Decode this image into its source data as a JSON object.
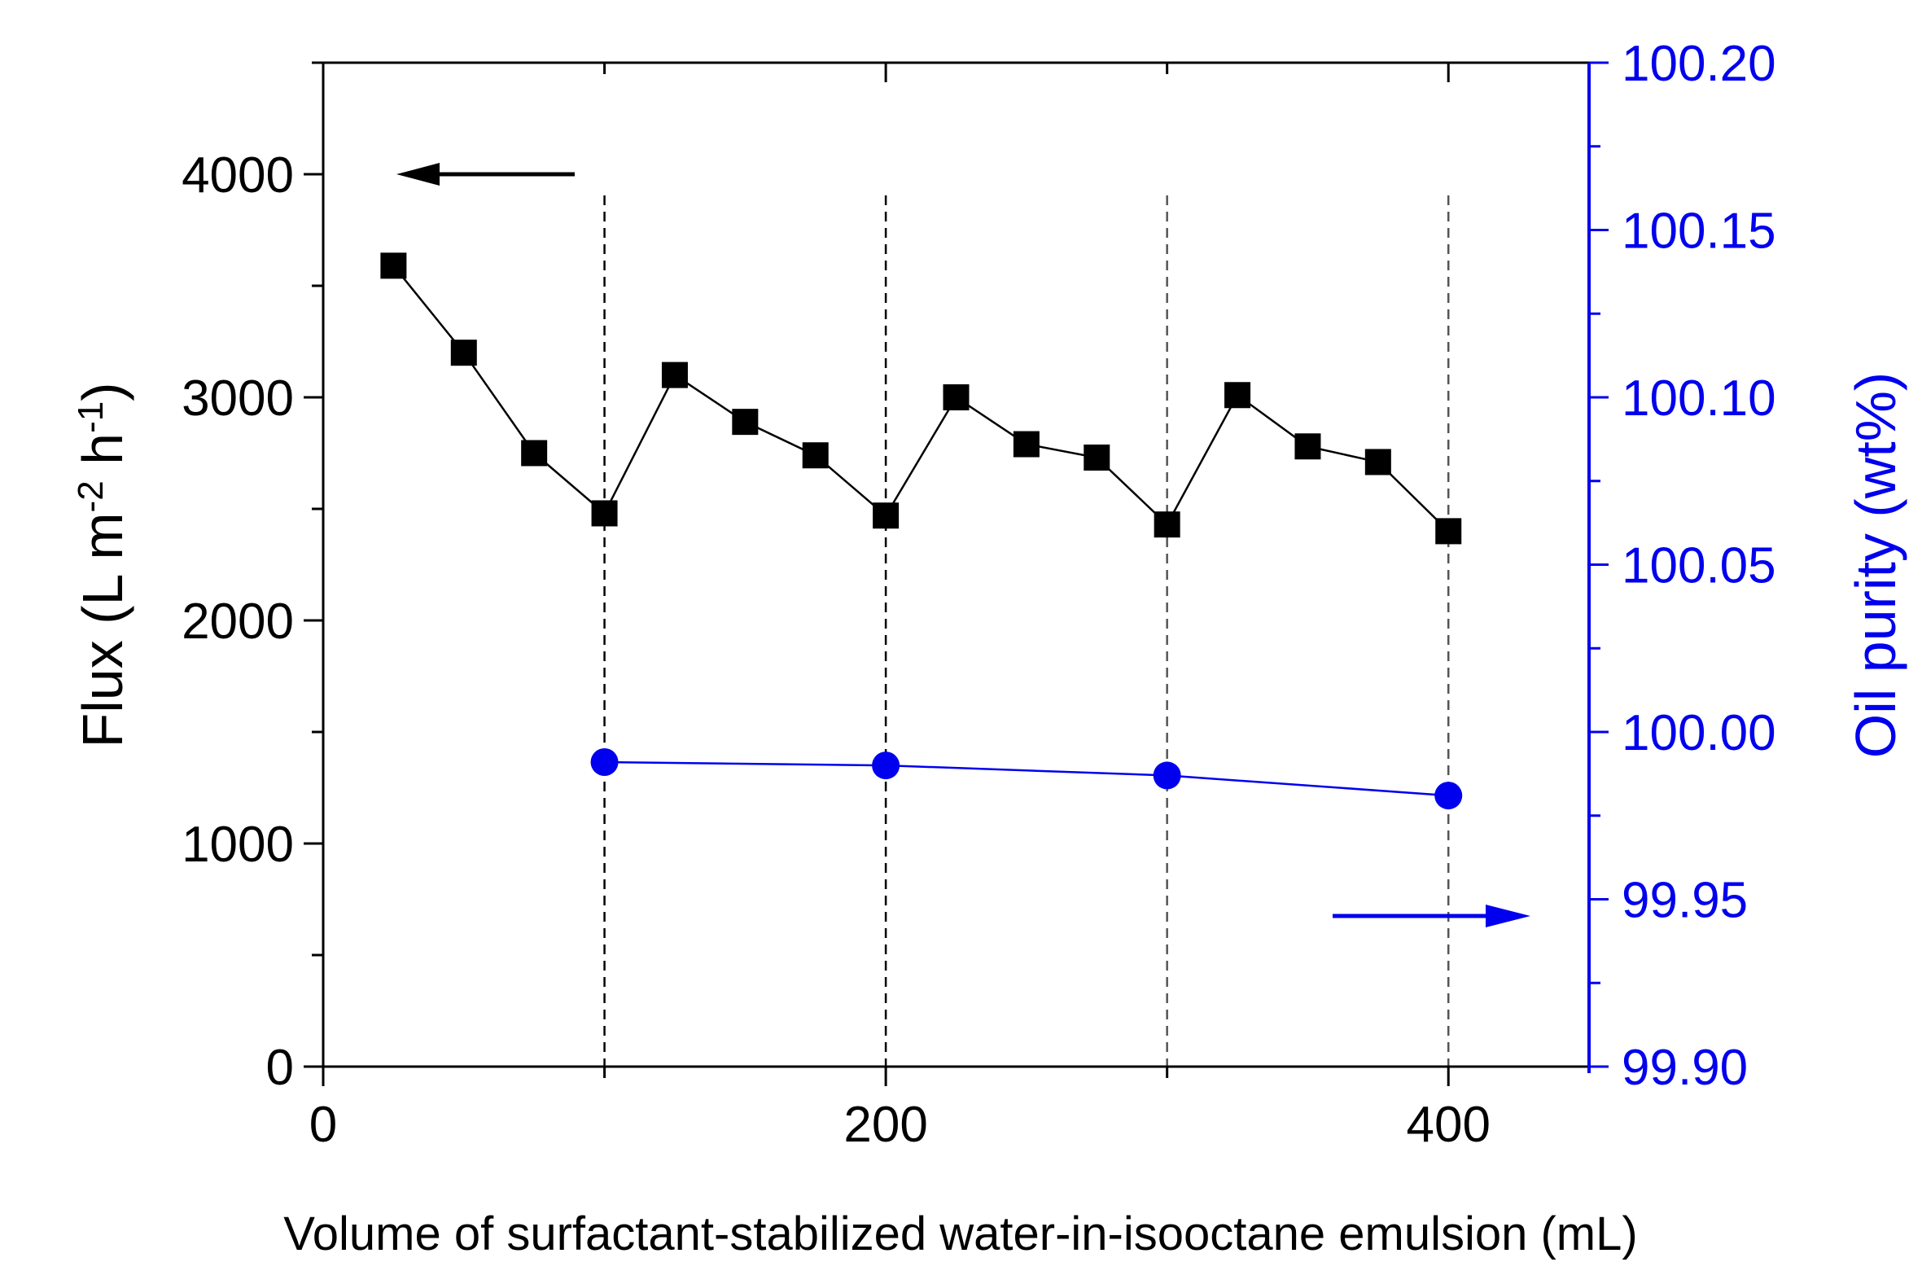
{
  "chart_data": {
    "type": "line",
    "xlabel": "Volume of surfactant-stabilized water-in-isooctane emulsion (mL)",
    "ylabel_left": {
      "main": "Flux (L m",
      "sup1": "-2",
      "mid": " h",
      "sup2": "-1",
      "end": ")"
    },
    "ylabel_right": "Oil purity (wt%)",
    "xlim": [
      0,
      450
    ],
    "ylim_left": [
      0,
      4500
    ],
    "ylim_right": [
      99.9,
      100.2
    ],
    "x_ticks": [
      0,
      200,
      400
    ],
    "x_tick_labels": [
      "0",
      "200",
      "400"
    ],
    "y_left_ticks": [
      0,
      1000,
      2000,
      3000,
      4000
    ],
    "y_left_tick_labels": [
      "0",
      "1000",
      "2000",
      "3000",
      "4000"
    ],
    "y_right_ticks": [
      99.9,
      99.95,
      100.0,
      100.05,
      100.1,
      100.15,
      100.2
    ],
    "y_right_tick_labels": [
      "99.90",
      "99.95",
      "100.00",
      "100.05",
      "100.10",
      "100.15",
      "100.20"
    ],
    "vlines": [
      100,
      200,
      300,
      400
    ],
    "series": [
      {
        "name": "Flux",
        "axis": "left",
        "marker": "square",
        "color": "#000000",
        "x": [
          25,
          50,
          75,
          100,
          125,
          150,
          175,
          200,
          225,
          250,
          275,
          300,
          325,
          350,
          375,
          400
        ],
        "y": [
          3590,
          3200,
          2750,
          2480,
          3100,
          2890,
          2740,
          2470,
          3000,
          2790,
          2730,
          2430,
          3010,
          2780,
          2710,
          2400
        ]
      },
      {
        "name": "Oil purity",
        "axis": "right",
        "marker": "circle",
        "color": "#0000ee",
        "x": [
          100,
          200,
          300,
          400
        ],
        "y": [
          99.991,
          99.99,
          99.987,
          99.981
        ]
      }
    ],
    "arrows": [
      {
        "name": "left-axis-arrow",
        "direction": "left",
        "points_to": "left",
        "color": "#000000"
      },
      {
        "name": "right-axis-arrow",
        "direction": "right",
        "points_to": "right",
        "color": "#0000ee"
      }
    ]
  }
}
